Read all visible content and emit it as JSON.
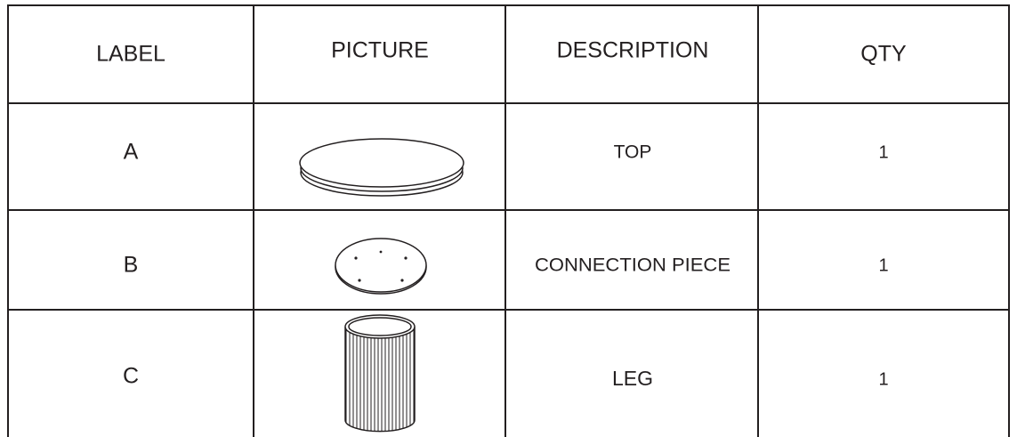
{
  "table": {
    "header": [
      "LABEL",
      "PICTURE",
      "DESCRIPTION",
      "QTY"
    ],
    "rows": [
      [
        "A",
        "TOP",
        "1"
      ],
      [
        "B",
        "CONNECTION PIECE",
        "1"
      ],
      [
        "C",
        "LEG",
        "1"
      ]
    ]
  }
}
